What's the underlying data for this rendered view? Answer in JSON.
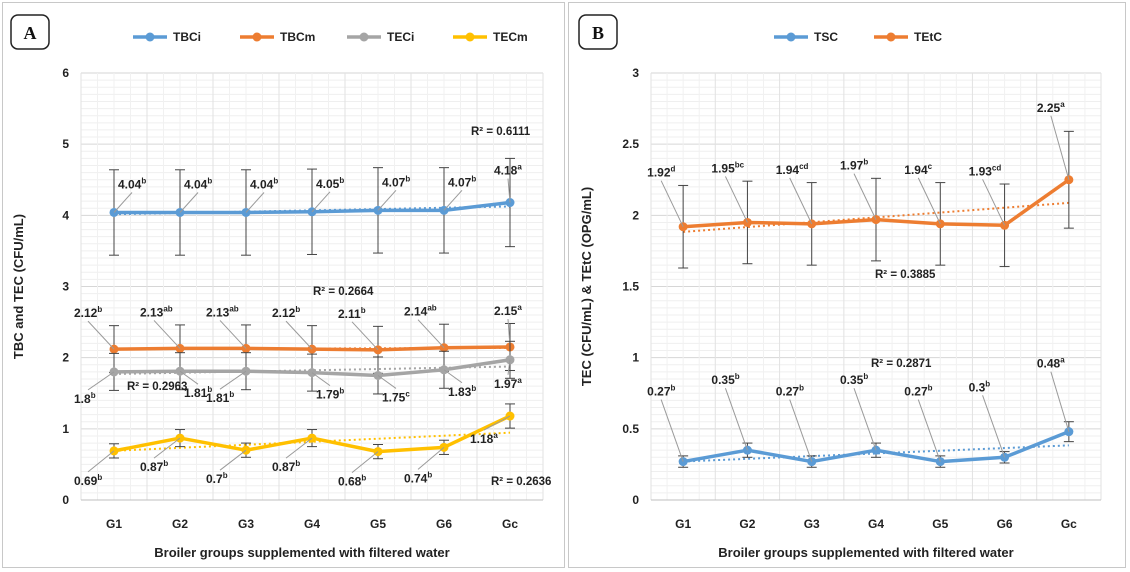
{
  "chart_data": [
    {
      "panel_label": "A",
      "type": "line",
      "ylabel": "TBC and TEC (CFU/mL)",
      "xlabel": "Broiler groups supplemented with filtered water",
      "categories": [
        "G1",
        "G2",
        "G3",
        "G4",
        "G5",
        "G6",
        "Gc"
      ],
      "y_ticks": [
        "0",
        "1",
        "2",
        "3",
        "4",
        "5",
        "6"
      ],
      "ylim": [
        0,
        6
      ],
      "grid": true,
      "legend_position": "top",
      "series": [
        {
          "name": "TBCi",
          "color": "#5b9bd5",
          "values": [
            4.04,
            4.04,
            4.04,
            4.05,
            4.07,
            4.07,
            4.18
          ],
          "errors": [
            0.6,
            0.6,
            0.6,
            0.6,
            0.6,
            0.6,
            0.62
          ],
          "labels": [
            {
              "text": "4.04",
              "sup": "b"
            },
            {
              "text": "4.04",
              "sup": "b"
            },
            {
              "text": "4.04",
              "sup": "b"
            },
            {
              "text": "4.05",
              "sup": "b"
            },
            {
              "text": "4.07",
              "sup": "b"
            },
            {
              "text": "4.07",
              "sup": "b"
            },
            {
              "text": "4.18",
              "sup": "a"
            }
          ],
          "r2": "R² = 0.6111"
        },
        {
          "name": "TBCm",
          "color": "#ed7d31",
          "values": [
            2.12,
            2.13,
            2.13,
            2.12,
            2.11,
            2.14,
            2.15
          ],
          "errors": [
            0.33,
            0.33,
            0.33,
            0.33,
            0.33,
            0.33,
            0.33
          ],
          "labels": [
            {
              "text": "2.12",
              "sup": "b"
            },
            {
              "text": "2.13",
              "sup": "ab"
            },
            {
              "text": "2.13",
              "sup": "ab"
            },
            {
              "text": "2.12",
              "sup": "b"
            },
            {
              "text": "2.11",
              "sup": "b"
            },
            {
              "text": "2.14",
              "sup": "ab"
            },
            {
              "text": "2.15",
              "sup": "a"
            }
          ],
          "r2": "R² = 0.2664"
        },
        {
          "name": "TECi",
          "color": "#a5a5a5",
          "values": [
            1.8,
            1.81,
            1.81,
            1.79,
            1.75,
            1.83,
            1.97
          ],
          "errors": [
            0.26,
            0.26,
            0.26,
            0.26,
            0.26,
            0.26,
            0.26
          ],
          "labels": [
            {
              "text": "1.8",
              "sup": "b"
            },
            {
              "text": "1.81",
              "sup": "b"
            },
            {
              "text": "1.81",
              "sup": "b"
            },
            {
              "text": "1.79",
              "sup": "b"
            },
            {
              "text": "1.75",
              "sup": "c"
            },
            {
              "text": "1.83",
              "sup": "b"
            },
            {
              "text": "1.97",
              "sup": "a"
            }
          ],
          "r2": "R² = 0.2963"
        },
        {
          "name": "TECm",
          "color": "#ffc000",
          "values": [
            0.69,
            0.87,
            0.7,
            0.87,
            0.68,
            0.74,
            1.18
          ],
          "errors": [
            0.1,
            0.12,
            0.1,
            0.12,
            0.1,
            0.1,
            0.17
          ],
          "labels": [
            {
              "text": "0.69",
              "sup": "b"
            },
            {
              "text": "0.87",
              "sup": "b"
            },
            {
              "text": "0.7",
              "sup": "b"
            },
            {
              "text": "0.87",
              "sup": "b"
            },
            {
              "text": "0.68",
              "sup": "b"
            },
            {
              "text": "0.74",
              "sup": "b"
            },
            {
              "text": "1.18",
              "sup": "a"
            }
          ],
          "r2": "R² = 0.2636"
        }
      ]
    },
    {
      "panel_label": "B",
      "type": "line",
      "ylabel": "TEC (CFU/mL) & TEtC (OPG/mL)",
      "xlabel": "Broiler groups supplemented with filtered water",
      "categories": [
        "G1",
        "G2",
        "G3",
        "G4",
        "G5",
        "G6",
        "Gc"
      ],
      "y_ticks": [
        "0",
        "0.5",
        "1",
        "1.5",
        "2",
        "2.5",
        "3"
      ],
      "ylim": [
        0,
        3
      ],
      "grid": true,
      "legend_position": "top",
      "series": [
        {
          "name": "TSC",
          "color": "#5b9bd5",
          "values": [
            0.27,
            0.35,
            0.27,
            0.35,
            0.27,
            0.3,
            0.48
          ],
          "errors": [
            0.04,
            0.05,
            0.04,
            0.05,
            0.04,
            0.04,
            0.07
          ],
          "labels": [
            {
              "text": "0.27",
              "sup": "b"
            },
            {
              "text": "0.35",
              "sup": "b"
            },
            {
              "text": "0.27",
              "sup": "b"
            },
            {
              "text": "0.35",
              "sup": "b"
            },
            {
              "text": "0.27",
              "sup": "b"
            },
            {
              "text": "0.3",
              "sup": "b"
            },
            {
              "text": "0.48",
              "sup": "a"
            }
          ],
          "r2": "R² = 0.2871"
        },
        {
          "name": "TEtC",
          "color": "#ed7d31",
          "values": [
            1.92,
            1.95,
            1.94,
            1.97,
            1.94,
            1.93,
            2.25
          ],
          "errors": [
            0.29,
            0.29,
            0.29,
            0.29,
            0.29,
            0.29,
            0.34
          ],
          "labels": [
            {
              "text": "1.92",
              "sup": "d"
            },
            {
              "text": "1.95",
              "sup": "bc"
            },
            {
              "text": "1.94",
              "sup": "cd"
            },
            {
              "text": "1.97",
              "sup": "b"
            },
            {
              "text": "1.94",
              "sup": "c"
            },
            {
              "text": "1.93",
              "sup": "cd"
            },
            {
              "text": "2.25",
              "sup": "a"
            }
          ],
          "r2": "R² = 0.3885"
        }
      ]
    }
  ]
}
